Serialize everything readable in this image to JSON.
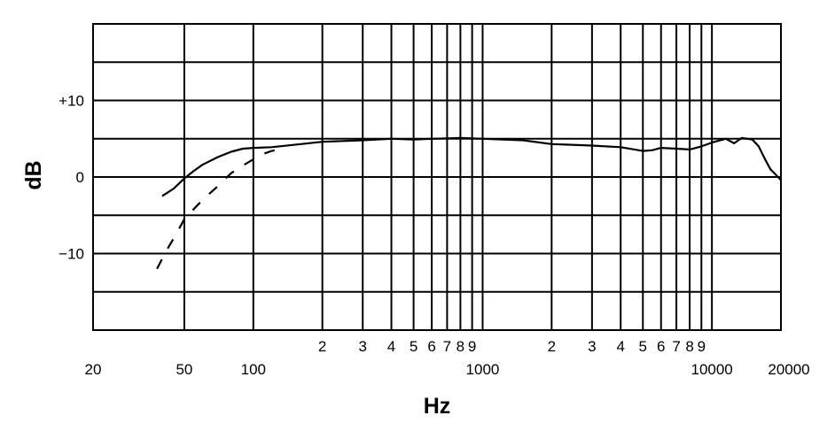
{
  "chart_data": {
    "type": "line",
    "title": "",
    "xlabel": "Hz",
    "ylabel": "dB",
    "x_scale": "log",
    "xlim": [
      20,
      20000
    ],
    "ylim": [
      -20,
      20
    ],
    "grid": true,
    "x_ticks_major": [
      {
        "value": 20,
        "label": "20"
      },
      {
        "value": 50,
        "label": "50"
      },
      {
        "value": 100,
        "label": "100"
      },
      {
        "value": 1000,
        "label": "1000"
      },
      {
        "value": 10000,
        "label": "10000"
      },
      {
        "value": 20000,
        "label": "20000"
      }
    ],
    "x_ticks_minor": [
      {
        "value": 200,
        "label": "2"
      },
      {
        "value": 300,
        "label": "3"
      },
      {
        "value": 400,
        "label": "4"
      },
      {
        "value": 500,
        "label": "5"
      },
      {
        "value": 600,
        "label": "6"
      },
      {
        "value": 700,
        "label": "7"
      },
      {
        "value": 800,
        "label": "8"
      },
      {
        "value": 900,
        "label": "9"
      },
      {
        "value": 2000,
        "label": "2"
      },
      {
        "value": 3000,
        "label": "3"
      },
      {
        "value": 4000,
        "label": "4"
      },
      {
        "value": 5000,
        "label": "5"
      },
      {
        "value": 6000,
        "label": "6"
      },
      {
        "value": 7000,
        "label": "7"
      },
      {
        "value": 8000,
        "label": "8"
      },
      {
        "value": 9000,
        "label": "9"
      }
    ],
    "y_ticks": [
      {
        "value": 10,
        "label": "+10"
      },
      {
        "value": 0,
        "label": "0"
      },
      {
        "value": -10,
        "label": "−10"
      }
    ],
    "y_gridlines": [
      -15,
      -10,
      -5,
      0,
      5,
      10,
      15
    ],
    "series": [
      {
        "style": "solid",
        "points": [
          [
            40,
            -2.5
          ],
          [
            45,
            -1.5
          ],
          [
            50,
            -0.2
          ],
          [
            55,
            0.8
          ],
          [
            60,
            1.6
          ],
          [
            70,
            2.6
          ],
          [
            80,
            3.3
          ],
          [
            90,
            3.7
          ],
          [
            100,
            3.8
          ],
          [
            120,
            3.9
          ],
          [
            150,
            4.2
          ],
          [
            200,
            4.6
          ],
          [
            300,
            4.8
          ],
          [
            400,
            5.0
          ],
          [
            500,
            4.9
          ],
          [
            600,
            5.0
          ],
          [
            800,
            5.1
          ],
          [
            1000,
            5.0
          ],
          [
            1500,
            4.8
          ],
          [
            2000,
            4.3
          ],
          [
            3000,
            4.1
          ],
          [
            4000,
            3.9
          ],
          [
            5000,
            3.4
          ],
          [
            5500,
            3.5
          ],
          [
            6000,
            3.8
          ],
          [
            7000,
            3.7
          ],
          [
            8000,
            3.6
          ],
          [
            9000,
            4.0
          ],
          [
            10000,
            4.5
          ],
          [
            11500,
            5.0
          ],
          [
            12500,
            4.4
          ],
          [
            13500,
            5.1
          ],
          [
            15000,
            4.9
          ],
          [
            16000,
            4.0
          ],
          [
            17000,
            2.4
          ],
          [
            18000,
            1.0
          ],
          [
            19000,
            0.3
          ],
          [
            20000,
            -0.4
          ]
        ]
      },
      {
        "style": "dashed",
        "points": [
          [
            38,
            -12
          ],
          [
            42,
            -9.5
          ],
          [
            46,
            -7.5
          ],
          [
            50,
            -5.5
          ],
          [
            55,
            -4.2
          ],
          [
            60,
            -3.0
          ],
          [
            70,
            -1.2
          ],
          [
            80,
            0.5
          ],
          [
            90,
            1.5
          ],
          [
            100,
            2.3
          ],
          [
            110,
            3.0
          ],
          [
            120,
            3.4
          ],
          [
            130,
            3.6
          ]
        ]
      }
    ]
  }
}
